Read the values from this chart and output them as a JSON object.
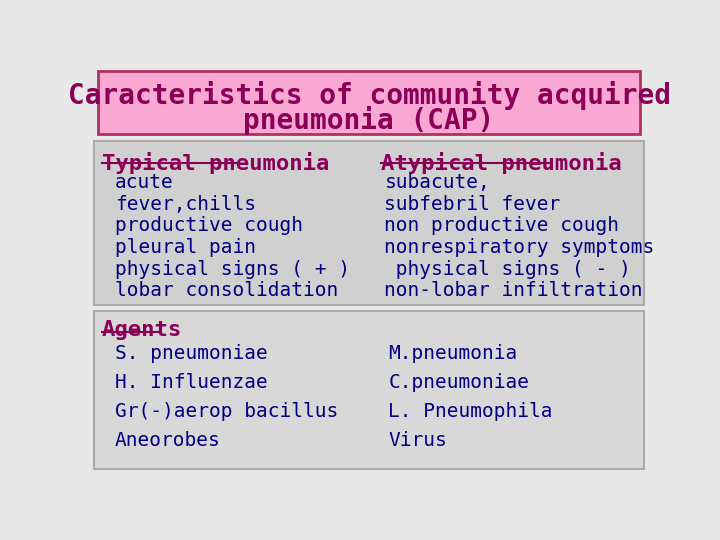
{
  "title_line1": "Caracteristics of community acquired",
  "title_line2": "pneumonia (CAP)",
  "title_bg": "#f9a8d4",
  "title_border": "#b03060",
  "title_color": "#8b0057",
  "title_fontsize": 20,
  "section1_bg": "#d0d0d0",
  "section2_bg": "#d8d8d8",
  "bg_color": "#e8e8e8",
  "typical_header": "Typical pneumonia",
  "typical_items": [
    "acute",
    "fever,chills",
    "productive cough",
    "pleural pain",
    "physical signs ( + )",
    "lobar consolidation"
  ],
  "atypical_header": "Atypical pneumonia",
  "atypical_items": [
    "subacute,",
    "subfebril fever",
    "non productive cough",
    "nonrespiratory symptoms",
    " physical signs ( - )",
    "non-lobar infiltration"
  ],
  "agents_header": "Agents",
  "agents_left": [
    "S. pneumoniae",
    "H. Influenzae",
    "Gr(-)aerop bacillus",
    "Aneorobes"
  ],
  "agents_right": [
    "M.pneumonia",
    "C.pneumoniae",
    "L. Pneumophila",
    "Virus"
  ],
  "header_color": "#8b0057",
  "header_fontsize": 16,
  "item_fontsize": 14,
  "typical_color": "#000080",
  "atypical_color": "#000080",
  "agents_left_color": "#000080",
  "agents_right_color": "#000080",
  "agents_header_color": "#8b0057"
}
